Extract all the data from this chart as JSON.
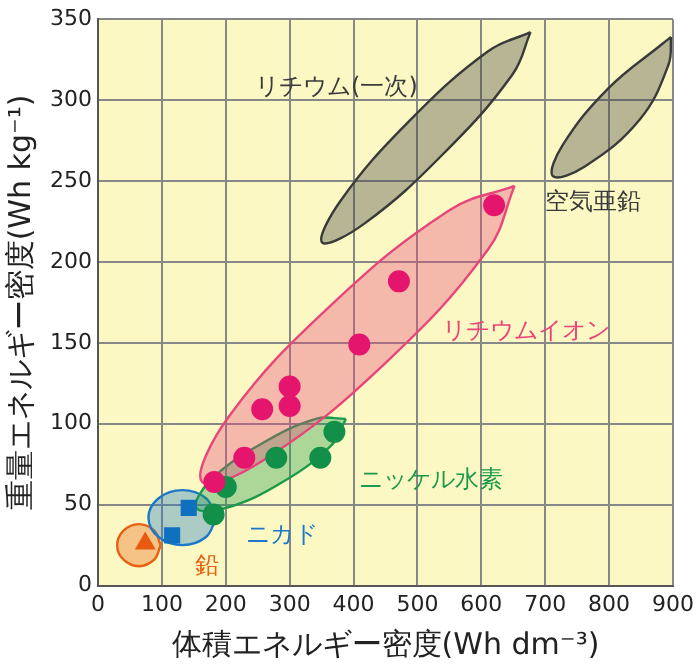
{
  "chart_data": {
    "type": "scatter",
    "xlabel": "体積エネルギー密度(Wh dm⁻³)",
    "ylabel": "重量エネルギー密度(Wh kg⁻¹)",
    "xlim": [
      0,
      900
    ],
    "xticks": [
      0,
      100,
      200,
      300,
      400,
      500,
      600,
      700,
      800,
      900
    ],
    "ylim": [
      0,
      350
    ],
    "yticks": [
      0,
      50,
      100,
      150,
      200,
      250,
      300,
      350
    ],
    "grid": true,
    "legend": false,
    "series": [
      {
        "type": "area",
        "name": "リチウム(一次)",
        "marker": "none",
        "color": "#3a3a3a",
        "x": [
          677,
          649,
          541,
          418,
          351,
          380,
          487,
          610
        ],
        "values": [
          342,
          316,
          267,
          224,
          212,
          238,
          287,
          330
        ]
      },
      {
        "type": "area",
        "name": "空気亜鉛",
        "marker": "none",
        "color": "#3a3a3a",
        "x": [
          897,
          893,
          848,
          762,
          712,
          727,
          798,
          884
        ],
        "values": [
          339,
          322,
          288,
          259,
          253,
          272,
          307,
          335
        ]
      },
      {
        "type": "area",
        "name": "リチウムイオン",
        "marker": "none",
        "color": "#e8457a",
        "x": [
          652,
          611,
          451,
          265,
          163,
          204,
          364,
          550
        ],
        "values": [
          247,
          208,
          138,
          79,
          64,
          104,
          173,
          232
        ]
      },
      {
        "type": "area",
        "name": "ニッケル水素",
        "marker": "none",
        "color": "#1a9a4a",
        "x": [
          388,
          366,
          289,
          201,
          154,
          176,
          253,
          341
        ],
        "values": [
          103,
          87,
          64,
          48,
          48,
          65,
          87,
          103
        ]
      },
      {
        "type": "area",
        "name": "ニカド",
        "marker": "none",
        "color": "#1e78c8",
        "x": [
          185,
          169,
          132,
          95,
          79,
          95,
          132,
          169
        ],
        "values": [
          42,
          54,
          59,
          54,
          42,
          30,
          25,
          30
        ]
      },
      {
        "type": "area",
        "name": "鉛",
        "marker": "none",
        "color": "#e86010",
        "x": [
          98,
          88,
          64,
          40,
          30,
          40,
          64,
          88
        ],
        "values": [
          25,
          34,
          38,
          34,
          25,
          16,
          12,
          16
        ]
      },
      {
        "type": "scatter",
        "marker": "circle",
        "color": "#e5156e",
        "x": [
          620,
          471,
          409,
          300,
          300,
          257,
          229,
          182
        ],
        "values": [
          235,
          188,
          149,
          123,
          111,
          109,
          79,
          64
        ]
      },
      {
        "type": "scatter",
        "marker": "circle",
        "color": "#12904a",
        "x": [
          370,
          348,
          279,
          200,
          181
        ],
        "values": [
          95,
          79,
          79,
          61,
          44
        ]
      },
      {
        "type": "scatter",
        "marker": "square",
        "color": "#1070c0",
        "x": [
          142,
          116
        ],
        "values": [
          48,
          31
        ]
      },
      {
        "type": "scatter",
        "marker": "triangle",
        "color": "#e85a10",
        "x": [
          74
        ],
        "values": [
          26
        ]
      }
    ]
  }
}
